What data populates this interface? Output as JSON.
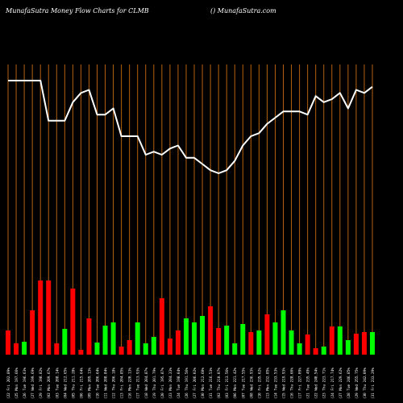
{
  "header": {
    "title": "MunafaSutra  Money  Flow  Charts for CLMB",
    "site": "() MunafaSutra.com"
  },
  "colors": {
    "background": "#000000",
    "gridline": "#b8610f",
    "price_line": "#ffffff",
    "up_bar": "#00ff00",
    "down_bar": "#ff0000",
    "label": "#ffffff"
  },
  "chart_data": {
    "type": "bar",
    "title": "",
    "xlabel": "",
    "ylabel": "",
    "categories": [
      "Fri 31 Jan 2025",
      "Thu 30 Jan 2025",
      "Wed 29 Jan 2025",
      "Tue 28 Jan 2025",
      "Mon 27 Jan 2025",
      "Fri 24 Jan 2025",
      "Thu 23 Jan 2025",
      "Wed 22 Jan 2025",
      "Tue 21 Jan 2025",
      "Fri 17 Jan 2025",
      "Thu 16 Jan 2025",
      "Wed 15 Jan 2025",
      "Tue 14 Jan 2025",
      "Mon 13 Jan 2025",
      "Fri 10 Jan 2025",
      "Wed 08 Jan 2025",
      "Tue 07 Jan 2025",
      "Mon 06 Jan 2025",
      "Fri 03 Jan 2025",
      "Thu 02 Jan 2025",
      "Tue 31 Dec 2024",
      "Mon 30 Dec 2024",
      "Fri 27 Dec 2024",
      "Thu 26 Dec 2024",
      "Tue 24 Dec 2024",
      "Mon 23 Dec 2024",
      "Fri 20 Dec 2024",
      "Thu 19 Dec 2024",
      "Wed 18 Dec 2024",
      "Tue 17 Dec 2024",
      "Mon 16 Dec 2024",
      "Fri 13 Dec 2024",
      "Thu 12 Dec 2024",
      "Wed 11 Dec 2024",
      "Tue 10 Dec 2024",
      "Mon 09 Dec 2024",
      "Fri 06 Dec 2024",
      "Thu 05 Dec 2024",
      "Wed 04 Dec 2024",
      "Tue 03 Dec 2024",
      "Mon 02 Dec 2024",
      "Fri 29 Nov 2024",
      "Wed 27 Nov 2024",
      "Tue 26 Nov 2024",
      "Mon 25 Nov 2024",
      "Fri 22 Nov 2024"
    ],
    "x_tick_labels": [
      "(31 Fri 233.29%",
      "(30 Thu 242.09%",
      "(29 Wed 255.75%",
      "(28 Tue 246.85%",
      "(27 Mon 229.62%",
      "(24 Fri 217.74%",
      "(23 Thu 223.71%",
      "(22 Wed 240.54%",
      "(21 Tue 235.49%",
      "(17 Fri 227.09%",
      "(16 Thu 228.66%",
      "(15 Wed 219.93%",
      "(14 Tue 233.53%",
      "(13 Mon 232.85%",
      "(10 Fri 235.62%",
      "(08 Wed 236.93%",
      "(07 Tue 217.55%",
      "(06 Mon 221.42%",
      "(03 Fri 213.56%",
      "(02 Thu 210.07%",
      "(31 Tue 216.53%",
      "(30 Mon 212.60%",
      "(27 Fri 206.02%",
      "(26 Thu 191.56%",
      "(24 Tue 198.04%",
      "(23 Mon 204.23%",
      "(20 Fri 195.87%",
      "(19 Thu 201.79%",
      "(18 Wed 204.87%",
      "(17 Tue 213.93%",
      "(16 Mon 220.13%",
      "(13 Fri 204.85%",
      "(12 Thu 206.18%",
      "(11 Wed 208.84%",
      "(10 Tue 206.64%",
      "(09 Mon 209.13%",
      "(06 Fri 215.64%",
      "(05 Thu 211.28%",
      "(04 Wed 212.65%",
      "(03 Tue 208.14%",
      "(02 Mon 209.67%",
      "(29 Fri 198.82%",
      "(27 Wed 199.69%",
      "(26 Tue 196.63%",
      "(25 Mon 197.66%",
      "(22 Fri 202.89%"
    ],
    "series": [
      {
        "type": "line",
        "values": [
          190,
          188,
          189,
          183,
          188,
          186,
          185,
          187,
          181,
          182,
          182,
          182,
          180,
          178,
          175,
          174,
          171,
          166,
          163,
          162,
          163,
          165,
          167,
          167,
          171,
          170,
          168,
          169,
          168,
          174,
          174,
          174,
          183,
          181,
          181,
          189,
          188,
          185,
          179,
          179,
          179,
          192,
          192,
          192,
          192,
          192
        ]
      },
      {
        "type": "bar",
        "values": [
          28,
          28,
          26,
          18,
          35,
          35,
          10,
          8,
          25,
          14,
          30,
          55,
          40,
          50,
          30,
          28,
          38,
          14,
          36,
          33,
          60,
          48,
          40,
          45,
          30,
          20,
          70,
          22,
          14,
          40,
          18,
          10,
          40,
          36,
          15,
          45,
          6,
          82,
          32,
          14,
          92,
          92,
          55,
          16,
          14,
          30
        ],
        "direction": [
          "up",
          "down",
          "down",
          "up",
          "up",
          "down",
          "up",
          "down",
          "down",
          "up",
          "up",
          "up",
          "up",
          "down",
          "up",
          "down",
          "up",
          "up",
          "up",
          "down",
          "down",
          "up",
          "up",
          "up",
          "down",
          "down",
          "down",
          "up",
          "up",
          "up",
          "down",
          "down",
          "up",
          "up",
          "up",
          "down",
          "down",
          "down",
          "up",
          "down",
          "down",
          "down",
          "down",
          "up",
          "down",
          "down"
        ]
      }
    ],
    "ylim": [
      0,
      100
    ],
    "grid": true
  }
}
